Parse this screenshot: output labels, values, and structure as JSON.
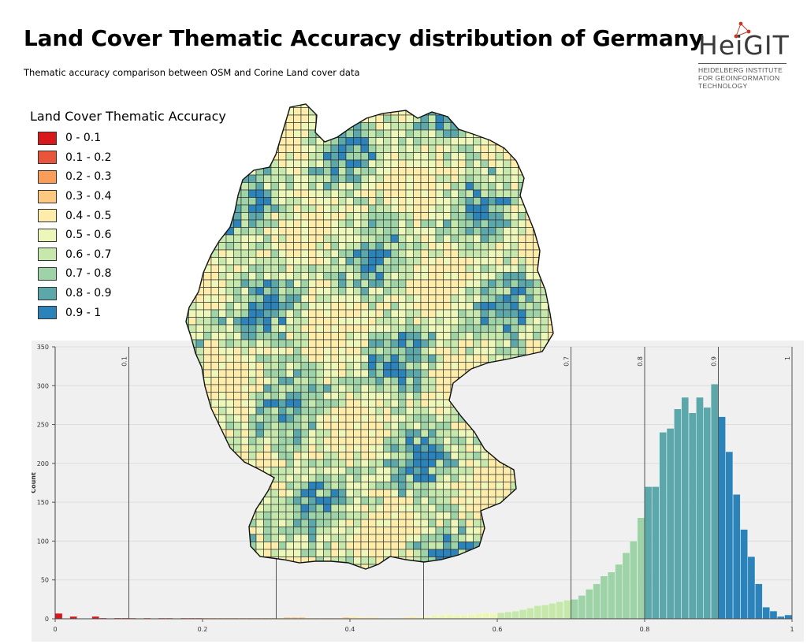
{
  "title": "Land Cover Thematic Accuracy distribution of Germany",
  "subtitle": "Thematic accuracy comparison between OSM and Corine Land cover data",
  "logo": {
    "brand": "HeiGIT",
    "lines": [
      "HEIDELBERG INSTITUTE",
      "FOR GEOINFORMATION",
      "TECHNOLOGY"
    ]
  },
  "legend": {
    "title": "Land Cover Thematic Accuracy",
    "items": [
      {
        "label": "0 - 0.1",
        "color": "#d7191c"
      },
      {
        "label": "0.1 - 0.2",
        "color": "#e8553a"
      },
      {
        "label": "0.2 - 0.3",
        "color": "#f99e59"
      },
      {
        "label": "0.3 - 0.4",
        "color": "#fdc980"
      },
      {
        "label": "0.4 - 0.5",
        "color": "#feedaa"
      },
      {
        "label": "0.5 - 0.6",
        "color": "#ecf7b9"
      },
      {
        "label": "0.6 - 0.7",
        "color": "#c7e8ad"
      },
      {
        "label": "0.7 - 0.8",
        "color": "#9dd3a7"
      },
      {
        "label": "0.8 - 0.9",
        "color": "#5ba7aa"
      },
      {
        "label": "0.9 - 1",
        "color": "#2b83ba"
      }
    ]
  },
  "chart_data": {
    "type": "bar",
    "ylabel": "Count",
    "xlim": [
      0,
      1
    ],
    "ylim": [
      0,
      350
    ],
    "x_ticks": [
      "0",
      "0.2",
      "0.4",
      "0.6",
      "0.8",
      "1"
    ],
    "y_ticks": [
      "0",
      "50",
      "100",
      "150",
      "200",
      "250",
      "300",
      "350"
    ],
    "class_breaks": [
      "0.1",
      "0.3",
      "0.5",
      "0.7",
      "0.8",
      "0.9",
      "1"
    ],
    "bin_width": 0.01,
    "bin_starts": [
      0.0,
      0.01,
      0.02,
      0.03,
      0.04,
      0.05,
      0.06,
      0.07,
      0.08,
      0.09,
      0.1,
      0.11,
      0.12,
      0.13,
      0.14,
      0.15,
      0.16,
      0.17,
      0.18,
      0.19,
      0.2,
      0.21,
      0.22,
      0.23,
      0.24,
      0.25,
      0.26,
      0.27,
      0.28,
      0.29,
      0.3,
      0.31,
      0.32,
      0.33,
      0.34,
      0.35,
      0.36,
      0.37,
      0.38,
      0.39,
      0.4,
      0.41,
      0.42,
      0.43,
      0.44,
      0.45,
      0.46,
      0.47,
      0.48,
      0.49,
      0.5,
      0.51,
      0.52,
      0.53,
      0.54,
      0.55,
      0.56,
      0.57,
      0.58,
      0.59,
      0.6,
      0.61,
      0.62,
      0.63,
      0.64,
      0.65,
      0.66,
      0.67,
      0.68,
      0.69,
      0.7,
      0.71,
      0.72,
      0.73,
      0.74,
      0.75,
      0.76,
      0.77,
      0.78,
      0.79,
      0.8,
      0.81,
      0.82,
      0.83,
      0.84,
      0.85,
      0.86,
      0.87,
      0.88,
      0.89,
      0.9,
      0.91,
      0.92,
      0.93,
      0.94,
      0.95,
      0.96,
      0.97,
      0.98,
      0.99
    ],
    "counts": [
      7,
      0,
      3,
      0,
      0,
      3,
      1,
      0,
      1,
      1,
      1,
      0,
      1,
      0,
      1,
      1,
      0,
      1,
      1,
      1,
      1,
      1,
      1,
      1,
      1,
      1,
      1,
      1,
      1,
      1,
      1,
      2,
      2,
      2,
      1,
      1,
      1,
      1,
      1,
      2,
      3,
      2,
      2,
      2,
      1,
      1,
      1,
      2,
      3,
      2,
      3,
      5,
      5,
      6,
      5,
      5,
      6,
      7,
      8,
      7,
      8,
      9,
      10,
      12,
      14,
      17,
      18,
      20,
      22,
      24,
      25,
      30,
      38,
      45,
      55,
      60,
      70,
      85,
      100,
      130,
      170,
      170,
      240,
      245,
      270,
      285,
      265,
      285,
      272,
      302,
      260,
      215,
      160,
      115,
      80,
      45,
      15,
      10,
      3,
      5
    ]
  }
}
